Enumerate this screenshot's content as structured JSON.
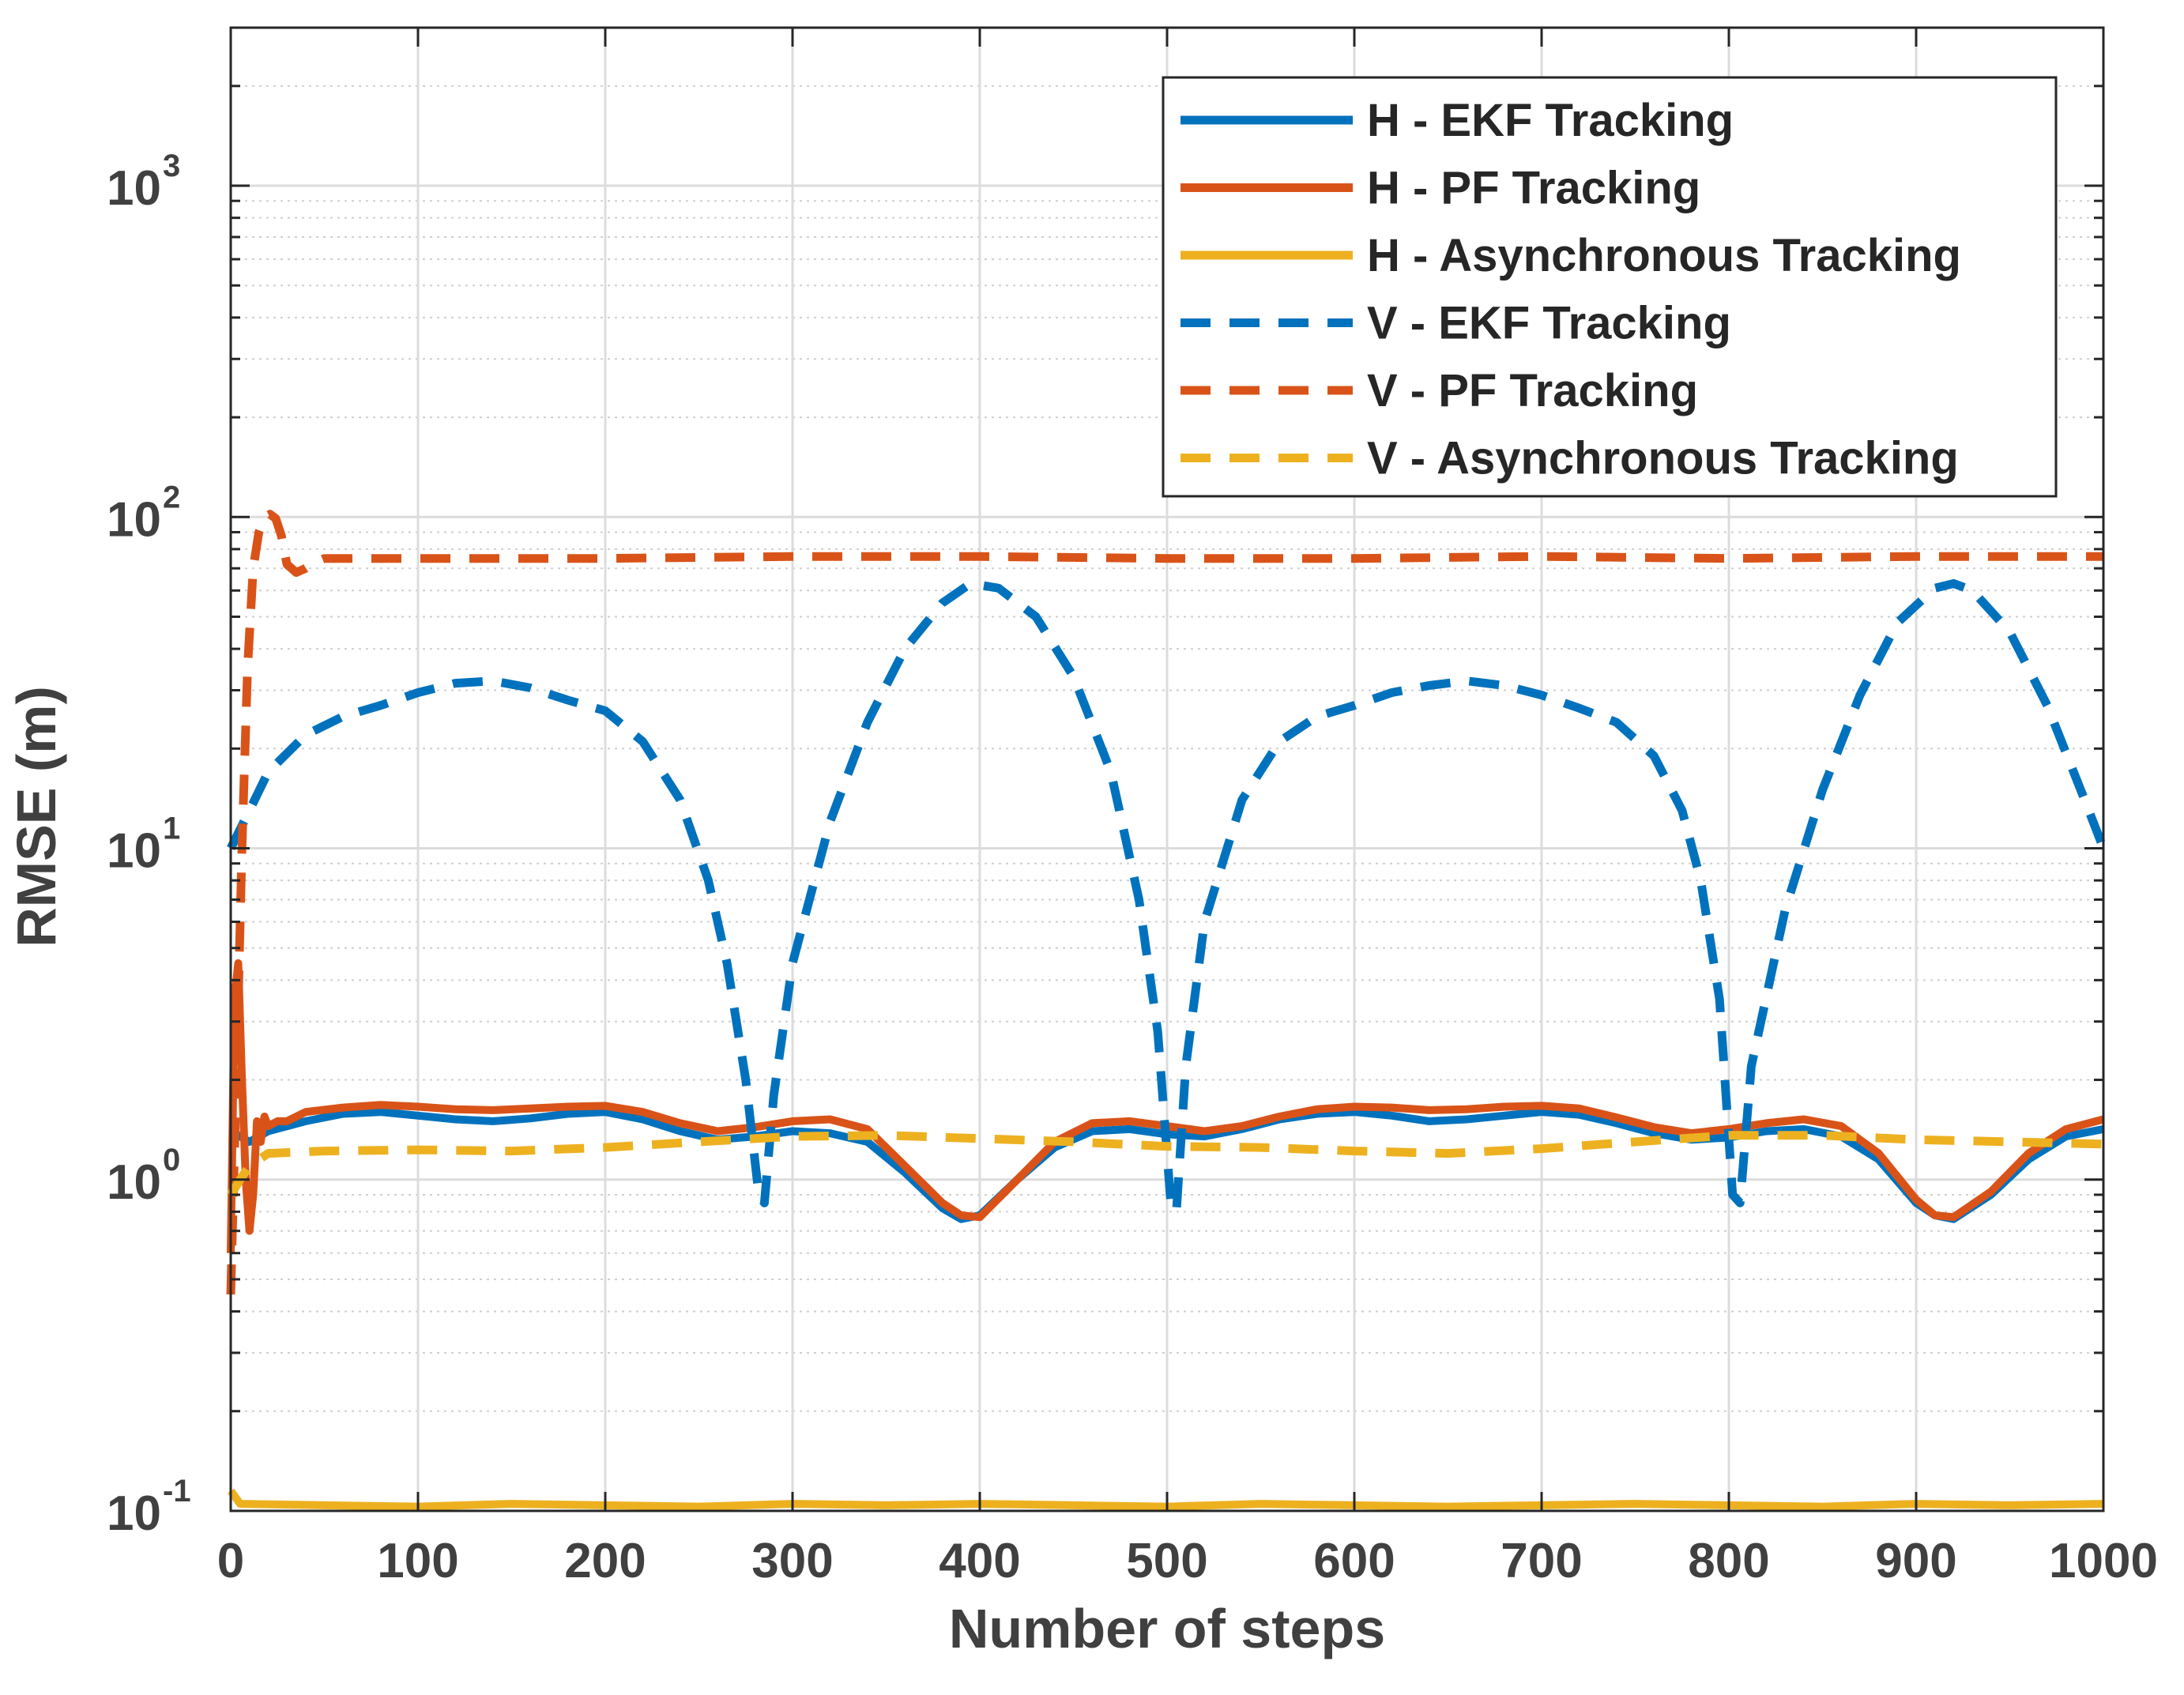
{
  "chart_data": {
    "type": "line",
    "title": "",
    "xlabel": "Number of steps",
    "ylabel": "RMSE (m)",
    "xlim": [
      0,
      1000
    ],
    "ylim": [
      0.1,
      3000
    ],
    "yscale": "log",
    "grid": true,
    "legend_position": "top-right",
    "x_ticks": [
      {
        "value": 0,
        "label": "0"
      },
      {
        "value": 100,
        "label": "100"
      },
      {
        "value": 200,
        "label": "200"
      },
      {
        "value": 300,
        "label": "300"
      },
      {
        "value": 400,
        "label": "400"
      },
      {
        "value": 500,
        "label": "500"
      },
      {
        "value": 600,
        "label": "600"
      },
      {
        "value": 700,
        "label": "700"
      },
      {
        "value": 800,
        "label": "800"
      },
      {
        "value": 900,
        "label": "900"
      },
      {
        "value": 1000,
        "label": "1000"
      }
    ],
    "y_ticks": [
      {
        "value": 0.1,
        "base": "10",
        "exp": "-1"
      },
      {
        "value": 1,
        "base": "10",
        "exp": "0"
      },
      {
        "value": 10,
        "base": "10",
        "exp": "1"
      },
      {
        "value": 100,
        "base": "10",
        "exp": "2"
      },
      {
        "value": 1000,
        "base": "10",
        "exp": "3"
      }
    ],
    "series": [
      {
        "name": "H - EKF Tracking",
        "color": "#0072BD",
        "dash": "solid",
        "x": [
          0,
          5,
          10,
          20,
          40,
          60,
          80,
          100,
          120,
          140,
          160,
          180,
          200,
          220,
          240,
          260,
          280,
          300,
          320,
          340,
          360,
          380,
          390,
          400,
          420,
          440,
          460,
          480,
          500,
          520,
          540,
          560,
          580,
          600,
          620,
          640,
          660,
          680,
          700,
          720,
          740,
          760,
          780,
          800,
          820,
          840,
          860,
          880,
          900,
          910,
          920,
          940,
          960,
          980,
          1000
        ],
        "values": [
          1.4,
          1.35,
          1.3,
          1.4,
          1.5,
          1.58,
          1.6,
          1.56,
          1.52,
          1.5,
          1.53,
          1.58,
          1.6,
          1.52,
          1.4,
          1.32,
          1.35,
          1.4,
          1.38,
          1.3,
          1.05,
          0.82,
          0.76,
          0.78,
          1.0,
          1.25,
          1.4,
          1.42,
          1.37,
          1.35,
          1.42,
          1.52,
          1.58,
          1.6,
          1.56,
          1.5,
          1.52,
          1.56,
          1.6,
          1.57,
          1.48,
          1.38,
          1.32,
          1.34,
          1.4,
          1.42,
          1.35,
          1.15,
          0.85,
          0.78,
          0.76,
          0.9,
          1.15,
          1.35,
          1.42
        ]
      },
      {
        "name": "H - PF Tracking",
        "color": "#D95319",
        "dash": "solid",
        "x": [
          0,
          2,
          4,
          6,
          8,
          10,
          12,
          14,
          16,
          18,
          20,
          25,
          30,
          40,
          60,
          80,
          100,
          120,
          140,
          160,
          180,
          200,
          220,
          240,
          260,
          280,
          300,
          320,
          340,
          360,
          380,
          390,
          400,
          420,
          440,
          460,
          480,
          500,
          520,
          540,
          560,
          580,
          600,
          620,
          640,
          660,
          680,
          700,
          720,
          740,
          760,
          780,
          800,
          820,
          840,
          860,
          880,
          900,
          910,
          920,
          940,
          960,
          980,
          1000
        ],
        "values": [
          0.6,
          3.5,
          4.5,
          2.0,
          1.0,
          0.7,
          0.9,
          1.5,
          1.3,
          1.55,
          1.45,
          1.5,
          1.5,
          1.6,
          1.65,
          1.68,
          1.66,
          1.63,
          1.62,
          1.64,
          1.66,
          1.67,
          1.6,
          1.48,
          1.4,
          1.44,
          1.5,
          1.52,
          1.42,
          1.1,
          0.85,
          0.78,
          0.77,
          1.0,
          1.3,
          1.48,
          1.5,
          1.45,
          1.4,
          1.45,
          1.55,
          1.63,
          1.66,
          1.65,
          1.62,
          1.63,
          1.66,
          1.67,
          1.64,
          1.54,
          1.44,
          1.38,
          1.42,
          1.48,
          1.52,
          1.45,
          1.2,
          0.87,
          0.78,
          0.77,
          0.92,
          1.2,
          1.42,
          1.52
        ]
      },
      {
        "name": "H - Asynchronous Tracking",
        "color": "#EDB120",
        "dash": "solid",
        "x": [
          0,
          5,
          50,
          100,
          150,
          200,
          250,
          300,
          350,
          400,
          450,
          500,
          550,
          600,
          650,
          700,
          750,
          800,
          850,
          900,
          950,
          1000
        ],
        "values": [
          0.115,
          0.105,
          0.104,
          0.103,
          0.105,
          0.104,
          0.103,
          0.105,
          0.104,
          0.105,
          0.104,
          0.103,
          0.105,
          0.104,
          0.103,
          0.104,
          0.105,
          0.104,
          0.103,
          0.105,
          0.104,
          0.105
        ]
      },
      {
        "name": "V - EKF Tracking",
        "color": "#0072BD",
        "dash": "dashed",
        "x": [
          0,
          10,
          20,
          40,
          60,
          80,
          100,
          120,
          140,
          160,
          180,
          200,
          220,
          240,
          255,
          265,
          275,
          282,
          285,
          290,
          300,
          320,
          340,
          360,
          380,
          395,
          410,
          430,
          450,
          470,
          485,
          495,
          502,
          505,
          510,
          520,
          540,
          560,
          580,
          600,
          620,
          640,
          660,
          680,
          700,
          720,
          740,
          760,
          775,
          785,
          795,
          802,
          806,
          812,
          830,
          850,
          870,
          890,
          910,
          920,
          930,
          950,
          970,
          990,
          1000
        ],
        "values": [
          10,
          13,
          17,
          22,
          25,
          27,
          29.5,
          31.5,
          32,
          30.5,
          28,
          26,
          21,
          14,
          8,
          4.5,
          2.0,
          0.9,
          0.85,
          1.8,
          4.5,
          12,
          24,
          40,
          55,
          63,
          61,
          50,
          33,
          17,
          7,
          2.8,
          0.85,
          0.8,
          2.2,
          6,
          14,
          21,
          25,
          27,
          29.5,
          31,
          32,
          31,
          29,
          26.5,
          24,
          19,
          13,
          8,
          3.5,
          0.9,
          0.85,
          2.2,
          6.5,
          15,
          29,
          48,
          61,
          63,
          60,
          45,
          27,
          14,
          10
        ]
      },
      {
        "name": "V - PF Tracking",
        "color": "#D95319",
        "dash": "dashed",
        "x": [
          0,
          3,
          6,
          9,
          12,
          15,
          18,
          21,
          24,
          27,
          30,
          35,
          40,
          45,
          50,
          60,
          100,
          200,
          300,
          400,
          500,
          600,
          700,
          800,
          900,
          1000
        ],
        "values": [
          0.45,
          2.0,
          10,
          35,
          70,
          90,
          100,
          102,
          99,
          88,
          72,
          68,
          70,
          73,
          75,
          75,
          75,
          75,
          76,
          76,
          75,
          75,
          76,
          75,
          76,
          76
        ]
      },
      {
        "name": "V - Asynchronous Tracking",
        "color": "#EDB120",
        "dash": "dashed",
        "x": [
          0,
          5,
          10,
          20,
          50,
          100,
          150,
          200,
          250,
          300,
          350,
          400,
          450,
          500,
          550,
          600,
          650,
          700,
          750,
          800,
          850,
          900,
          950,
          1000
        ],
        "values": [
          0.9,
          1.0,
          1.1,
          1.2,
          1.22,
          1.23,
          1.22,
          1.25,
          1.3,
          1.35,
          1.36,
          1.33,
          1.3,
          1.26,
          1.25,
          1.22,
          1.2,
          1.24,
          1.3,
          1.36,
          1.36,
          1.32,
          1.3,
          1.28
        ]
      }
    ]
  }
}
